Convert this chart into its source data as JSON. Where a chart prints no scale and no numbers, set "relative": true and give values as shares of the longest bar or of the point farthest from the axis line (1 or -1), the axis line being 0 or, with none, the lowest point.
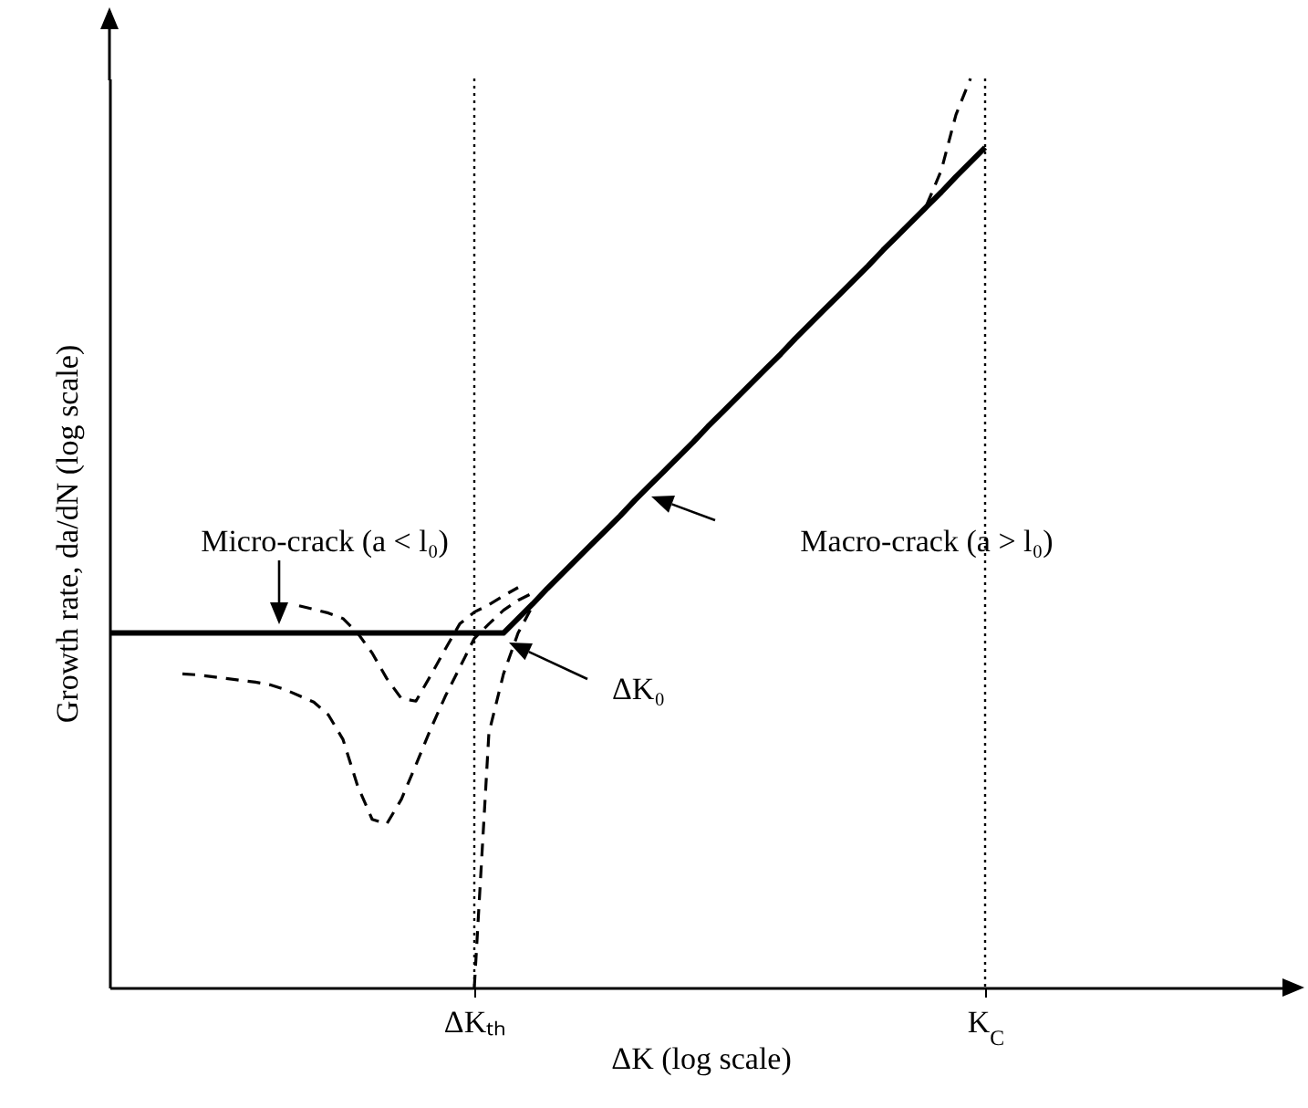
{
  "chart_data": {
    "type": "line",
    "relative": true,
    "xlabel": "ΔK (log scale)",
    "ylabel": "Growth rate, da/dN (log scale)",
    "tick_labels": "x",
    "categories": [
      null,
      null,
      null,
      null,
      null,
      null,
      null,
      null,
      null,
      null,
      null,
      null,
      null,
      null,
      null,
      null,
      null,
      null,
      null,
      null,
      null,
      null,
      null,
      null,
      null,
      "ΔKₜₕ",
      null,
      null,
      null,
      null,
      null,
      null,
      null,
      null,
      null,
      null,
      null,
      null,
      null,
      null,
      null,
      null,
      null,
      null,
      null,
      null,
      null,
      null,
      null,
      null,
      null,
      null,
      null,
      null,
      null,
      null,
      null,
      null,
      null,
      null,
      "K$_{C}$",
      null,
      null,
      null,
      null,
      null,
      null,
      null,
      null,
      null,
      null,
      null,
      null,
      null,
      null,
      null,
      null,
      null,
      null,
      null,
      null,
      null
    ],
    "series": [
      {
        "color": "#000000",
        "line_style": "solid",
        "values": [
          0.39,
          0.39,
          0.39,
          0.39,
          0.39,
          0.39,
          0.39,
          0.39,
          0.39,
          0.39,
          0.39,
          0.39,
          0.39,
          0.39,
          0.39,
          0.39,
          0.39,
          0.39,
          0.39,
          0.39,
          0.39,
          0.39,
          0.39,
          0.39,
          0.39,
          0.39,
          0.39,
          0.39,
          0.406,
          0.422,
          0.439,
          0.455,
          0.471,
          0.487,
          0.503,
          0.519,
          0.536,
          0.552,
          0.568,
          0.584,
          0.6,
          0.617,
          0.633,
          0.649,
          0.665,
          0.681,
          0.697,
          0.714,
          0.73,
          0.746,
          0.762,
          0.778,
          0.794,
          0.811,
          0.827,
          0.843,
          0.859,
          0.875,
          0.892,
          0.908,
          0.924,
          null,
          null,
          null,
          null,
          null,
          null,
          null,
          null,
          null,
          null,
          null,
          null,
          null,
          null,
          null,
          null,
          null,
          null,
          null,
          null,
          null
        ]
      },
      {
        "color": "#000000",
        "line_style": "dashed",
        "values": [
          null,
          null,
          null,
          null,
          null,
          null,
          null,
          null,
          null,
          null,
          null,
          null,
          null,
          0.42,
          0.416,
          0.412,
          0.406,
          0.39,
          0.368,
          0.34,
          0.318,
          0.315,
          0.343,
          0.372,
          0.4,
          0.413,
          0.421,
          0.431,
          0.44,
          null,
          null,
          null,
          null,
          null,
          null,
          null,
          null,
          null,
          null,
          null,
          null,
          null,
          null,
          null,
          null,
          null,
          null,
          null,
          null,
          null,
          null,
          null,
          null,
          null,
          null,
          null,
          null,
          null,
          null,
          null,
          null,
          null,
          null,
          null,
          null,
          null,
          null,
          null,
          null,
          null,
          null,
          null,
          null,
          null,
          null,
          null,
          null,
          null,
          null,
          null,
          null,
          null
        ]
      },
      {
        "color": "#000000",
        "line_style": "dashed",
        "values": [
          null,
          null,
          null,
          null,
          null,
          0.345,
          0.344,
          0.342,
          0.34,
          0.338,
          0.336,
          0.333,
          0.328,
          0.321,
          0.314,
          0.3,
          0.273,
          0.222,
          0.185,
          0.18,
          0.207,
          0.245,
          0.284,
          0.32,
          0.352,
          0.384,
          0.4,
          0.415,
          0.426,
          0.434,
          null,
          null,
          null,
          null,
          null,
          null,
          null,
          null,
          null,
          null,
          null,
          null,
          null,
          null,
          null,
          null,
          null,
          null,
          null,
          null,
          null,
          null,
          null,
          null,
          null,
          null,
          null,
          null,
          null,
          null,
          null,
          null,
          null,
          null,
          null,
          null,
          null,
          null,
          null,
          null,
          null,
          null,
          null,
          null,
          null,
          null,
          null,
          null,
          null,
          null,
          null,
          null
        ]
      },
      {
        "color": "#000000",
        "line_style": "dashed",
        "values": [
          null,
          null,
          null,
          null,
          null,
          null,
          null,
          null,
          null,
          null,
          null,
          null,
          null,
          null,
          null,
          null,
          null,
          null,
          null,
          null,
          null,
          null,
          null,
          null,
          null,
          0,
          0.28,
          0.345,
          0.39,
          0.42,
          null,
          null,
          null,
          null,
          null,
          null,
          null,
          null,
          null,
          null,
          null,
          null,
          null,
          null,
          null,
          null,
          null,
          null,
          null,
          null,
          null,
          null,
          null,
          null,
          null,
          null,
          null,
          null,
          null,
          null,
          null,
          null,
          null,
          null,
          null,
          null,
          null,
          null,
          null,
          null,
          null,
          null,
          null,
          null,
          null,
          null,
          null,
          null,
          null,
          null,
          null,
          null
        ]
      },
      {
        "color": "#000000",
        "line_style": "dashed",
        "values": [
          null,
          null,
          null,
          null,
          null,
          null,
          null,
          null,
          null,
          null,
          null,
          null,
          null,
          null,
          null,
          null,
          null,
          null,
          null,
          null,
          null,
          null,
          null,
          null,
          null,
          null,
          null,
          null,
          null,
          null,
          null,
          null,
          null,
          null,
          null,
          null,
          null,
          null,
          null,
          null,
          null,
          null,
          null,
          null,
          null,
          null,
          null,
          null,
          null,
          null,
          null,
          null,
          null,
          null,
          null,
          null,
          0.861,
          0.899,
          0.96,
          1,
          null,
          null,
          null,
          null,
          null,
          null,
          null,
          null,
          null,
          null,
          null,
          null,
          null,
          null,
          null,
          null,
          null,
          null,
          null,
          null,
          null,
          null
        ]
      }
    ],
    "ref_lines": [
      {
        "axis": "x",
        "value": "ΔKₜₕ",
        "line_style": "dotted"
      },
      {
        "axis": "x",
        "value": "K$_{C}$",
        "line_style": "dotted"
      }
    ],
    "annotations": [
      "Micro-crack (a < l₀)",
      "Macro-crack (a > l₀)",
      "ΔK₀"
    ]
  }
}
